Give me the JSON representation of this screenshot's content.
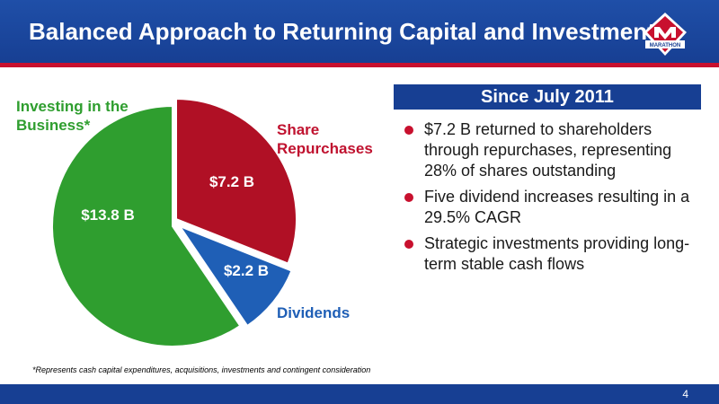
{
  "title": "Balanced Approach to Returning Capital and Investment",
  "logo": {
    "text": "MARATHON",
    "icon": "marathon-logo"
  },
  "since_header": "Since July 2011",
  "bullets": [
    "$7.2 B returned to shareholders through repurchases, representing 28% of shares outstanding",
    "Five dividend increases resulting in a 29.5% CAGR",
    "Strategic investments providing long-term stable cash flows"
  ],
  "footnote": "*Represents cash capital expenditures, acquisitions, investments and contingent consideration",
  "page_number": "4",
  "colors": {
    "header": "#1f4fa8",
    "accent_red": "#c8102e",
    "share": "#b01025",
    "dividends": "#1f5fb6",
    "invest": "#2f9e2f"
  },
  "chart_data": {
    "type": "pie",
    "slices": [
      {
        "key": "share",
        "label": "Share\nRepurchases",
        "value": 7.2,
        "value_label": "$7.2 B",
        "color": "#b01025"
      },
      {
        "key": "div",
        "label": "Dividends",
        "value": 2.2,
        "value_label": "$2.2 B",
        "color": "#1f5fb6"
      },
      {
        "key": "invest",
        "label": "Investing in the\nBusiness*",
        "value": 13.8,
        "value_label": "$13.8 B",
        "color": "#2f9e2f"
      }
    ]
  }
}
